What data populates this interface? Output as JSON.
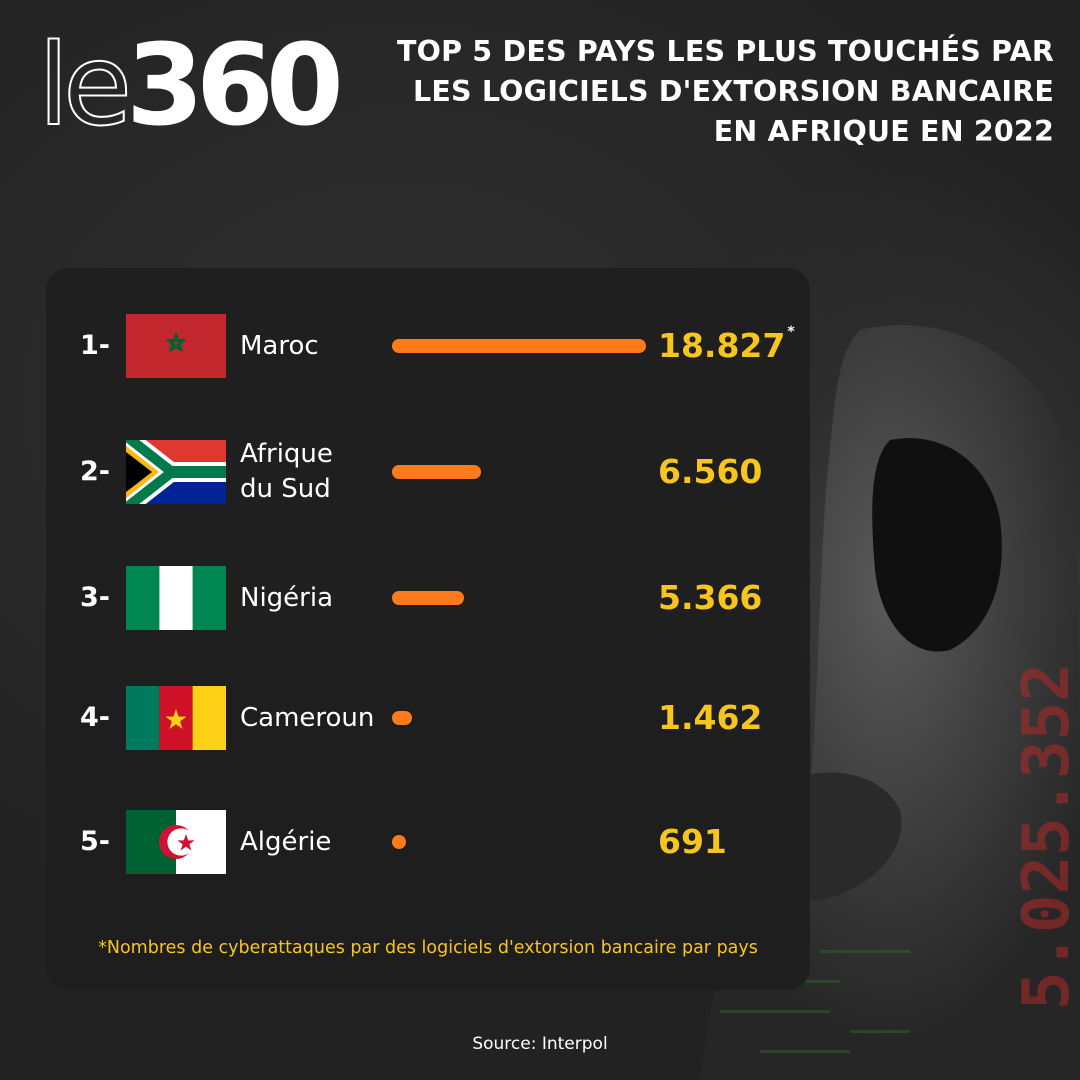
{
  "logo": {
    "letters": "le",
    "number": "360"
  },
  "title_lines": [
    "TOP 5 DES PAYS LES PLUS TOUCHÉS PAR",
    "LES LOGICIELS D'EXTORSION BANCAIRE",
    "EN AFRIQUE EN 2022"
  ],
  "chart_data": {
    "type": "bar",
    "orientation": "horizontal",
    "title": "TOP 5 DES PAYS LES PLUS TOUCHÉS PAR LES LOGICIELS D'EXTORSION BANCAIRE EN AFRIQUE EN 2022",
    "categories": [
      "Maroc",
      "Afrique du Sud",
      "Nigéria",
      "Cameroun",
      "Algérie"
    ],
    "values": [
      18827,
      6560,
      5366,
      1462,
      691
    ],
    "grid": false,
    "rows": [
      {
        "rank": "1-",
        "country": "Maroc",
        "name_lines": [
          "Maroc"
        ],
        "value": 18827,
        "value_label": "18.827",
        "marker": "*",
        "flag": "morocco-flag"
      },
      {
        "rank": "2-",
        "country": "Afrique du Sud",
        "name_lines": [
          "Afrique",
          "du Sud"
        ],
        "value": 6560,
        "value_label": "6.560",
        "marker": "",
        "flag": "south-africa-flag"
      },
      {
        "rank": "3-",
        "country": "Nigéria",
        "name_lines": [
          "Nigéria"
        ],
        "value": 5366,
        "value_label": "5.366",
        "marker": "",
        "flag": "nigeria-flag"
      },
      {
        "rank": "4-",
        "country": "Cameroun",
        "name_lines": [
          "Cameroun"
        ],
        "value": 1462,
        "value_label": "1.462",
        "marker": "",
        "flag": "cameroon-flag"
      },
      {
        "rank": "5-",
        "country": "Algérie",
        "name_lines": [
          "Algérie"
        ],
        "value": 691,
        "value_label": "691",
        "marker": "",
        "flag": "algeria-flag"
      }
    ],
    "footnote": "*Nombres de cyberattaques par des logiciels d'extorsion bancaire par pays",
    "source": "Source: Interpol"
  },
  "colors": {
    "bar": "#ff7a1a",
    "value_text": "#f7c51e",
    "footnote_text": "#f7c51e",
    "panel": "#1e1e1e",
    "background": "#242424",
    "figure_code": "#b32a2a"
  },
  "background_code": "5.025.352",
  "icons": [
    "hooded-figure-icon",
    "laptop-icon"
  ]
}
